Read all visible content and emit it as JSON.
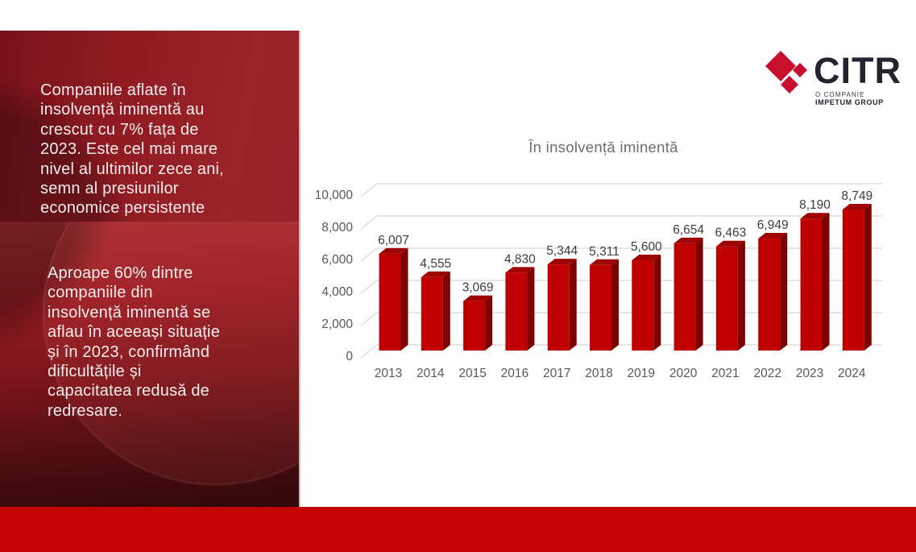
{
  "slide": {
    "sidebar": {
      "paragraph1": "Companiile aflate în\ninsolvență iminentă au\ncrescut cu 7% fața de\n2023. Este cel mai mare\nnivel al ultimilor zece ani,\nsemn al presiunilor\neconomice persistente",
      "paragraph2": "Aproape 60% dintre\ncompaniile din\ninsolvență iminentă se\naflau în aceeași situație\nși în 2023, confirmând\ndificultățile și\ncapacitatea redusă de\nredresare."
    },
    "logo": {
      "brand": "CITR",
      "tagline_line1": "O COMPANIE",
      "tagline_line2": "IMPETUM GROUP",
      "diamond_color": "#c8102e",
      "text_color": "#23242e"
    },
    "colors": {
      "sidebar_top": "#8e1a21",
      "sidebar_bottom": "#300709",
      "footer": "#c20404",
      "bar_front": "#c00000",
      "bar_side": "#7c0101",
      "bar_top": "#9e0404",
      "gridline": "#d8d8d8",
      "axis_text": "#595959",
      "data_label_text": "#3d3d3d",
      "title_text": "#6f6b6b"
    }
  },
  "chart_data": {
    "type": "bar",
    "style": "3d-column",
    "title": "În insolvență iminentă",
    "categories": [
      "2013",
      "2014",
      "2015",
      "2016",
      "2017",
      "2018",
      "2019",
      "2020",
      "2021",
      "2022",
      "2023",
      "2024"
    ],
    "values": [
      6007,
      4555,
      3069,
      4830,
      5344,
      5311,
      5600,
      6654,
      6463,
      6949,
      8190,
      8749
    ],
    "value_labels": [
      "6,007",
      "4,555",
      "3,069",
      "4,830",
      "5,344",
      "5,311",
      "5,600",
      "6,654",
      "6,463",
      "6,949",
      "8,190",
      "8,749"
    ],
    "y_ticks": [
      "0",
      "2,000",
      "4,000",
      "6,000",
      "8,000",
      "10,000"
    ],
    "ylim": [
      0,
      10000
    ],
    "y_step": 2000,
    "grid": true,
    "legend": "none",
    "series_name": "În insolvență iminentă",
    "series_color": "#c00000"
  }
}
